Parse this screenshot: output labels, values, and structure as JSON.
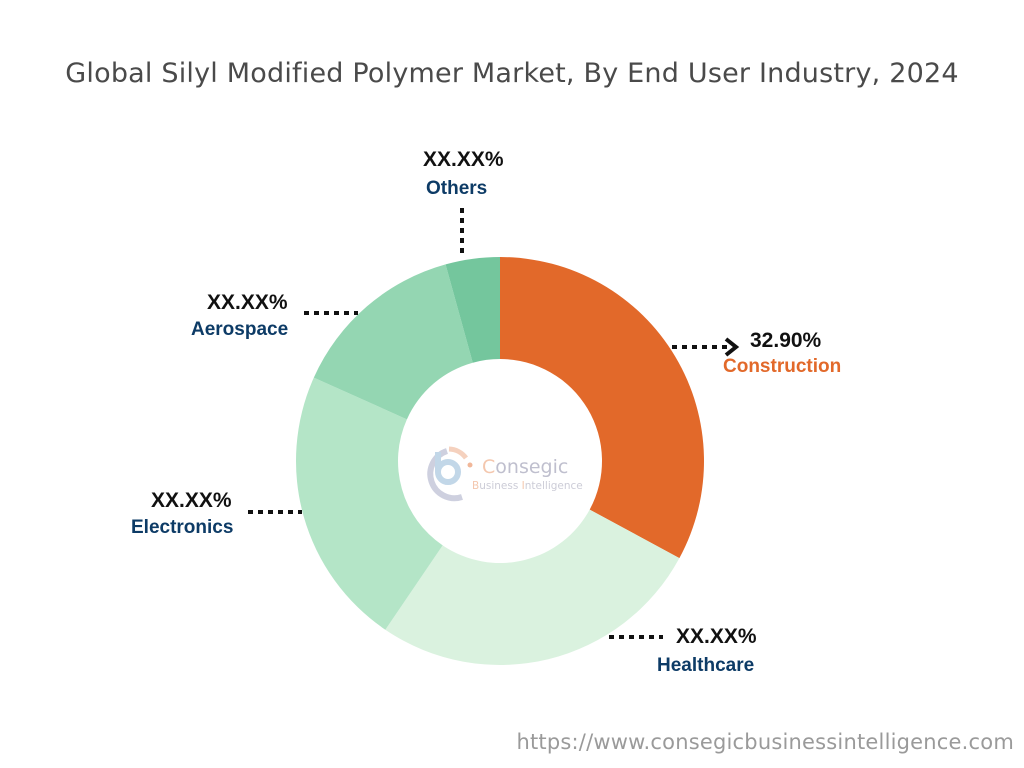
{
  "title": "Global Silyl Modified Polymer Market, By End User Industry, 2024",
  "footer_url": "https://www.consegicbusinessintelligence.com",
  "logo": {
    "brand": "Consegic",
    "tagline": "Business Intelligence"
  },
  "colors": {
    "construction": "#E2692A",
    "healthcare": "#DAF2DF",
    "electronics": "#B4E5C7",
    "aerospace": "#94D6B2",
    "others": "#74C69D",
    "label_blue": "#0D3B66",
    "label_orange": "#E2692A"
  },
  "labels": {
    "others": {
      "value": "XX.XX%",
      "name": "Others"
    },
    "aerospace": {
      "value": "XX.XX%",
      "name": "Aerospace"
    },
    "construction": {
      "value": "32.90%",
      "name": "Construction"
    },
    "electronics": {
      "value": "XX.XX%",
      "name": "Electronics"
    },
    "healthcare": {
      "value": "XX.XX%",
      "name": "Healthcare"
    }
  },
  "chart_data": {
    "type": "pie",
    "subtype": "donut",
    "title": "Global Silyl Modified Polymer Market, By End User Industry, 2024",
    "categories": [
      "Construction",
      "Healthcare",
      "Electronics",
      "Aerospace",
      "Others"
    ],
    "values": [
      32.9,
      26.6,
      22.2,
      14.0,
      4.3
    ],
    "value_labels": [
      "32.90%",
      "XX.XX%",
      "XX.XX%",
      "XX.XX%",
      "XX.XX%"
    ],
    "note": "Only Construction value is labeled (32.90%); other values estimated from slice angles",
    "legend": "none (direct labels)",
    "source": "https://www.consegicbusinessintelligence.com"
  }
}
